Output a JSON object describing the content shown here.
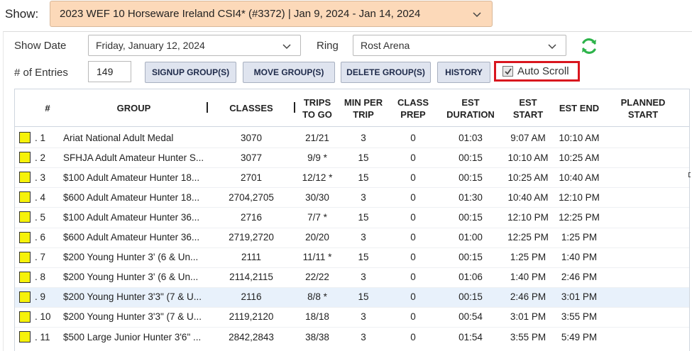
{
  "show": {
    "label": "Show:",
    "selected": "2023 WEF 10 Horseware Ireland CSI4* (#3372) | Jan 9, 2024 - Jan 14, 2024",
    "bg_color": "#fcd9b9"
  },
  "filters": {
    "show_date_label": "Show Date",
    "show_date_value": "Friday, January 12, 2024",
    "ring_label": "Ring",
    "ring_value": "Rost Arena",
    "entries_label": "# of Entries",
    "entries_value": "149"
  },
  "toolbar": {
    "signup_label": "SIGNUP GROUP(S)",
    "move_label": "MOVE GROUP(S)",
    "delete_label": "DELETE GROUP(S)",
    "history_label": "HISTORY",
    "auto_scroll_label": "Auto Scroll",
    "auto_scroll_checked": true,
    "refresh_icon": "refresh-icon",
    "refresh_color": "#2db34a",
    "highlight_color": "#d9161e"
  },
  "table": {
    "headers": {
      "num": "#",
      "group": "GROUP",
      "classes": "CLASSES",
      "trips_1": "TRIPS",
      "trips_2": "TO GO",
      "min_1": "MIN PER",
      "min_2": "TRIP",
      "prep_1": "CLASS",
      "prep_2": "PREP",
      "dur_1": "EST",
      "dur_2": "DURATION",
      "start_1": "EST",
      "start_2": "START",
      "end": "EST END",
      "planned_1": "PLANNED",
      "planned_2": "START"
    },
    "rows": [
      {
        "num": ". 1",
        "group": "Ariat National Adult Medal",
        "classes": "3070",
        "trips": "21/21",
        "min": "3",
        "prep": "0",
        "dur": "01:03",
        "start": "9:07 AM",
        "end": "10:10 AM",
        "planned": ""
      },
      {
        "num": ". 2",
        "group": "SFHJA Adult Amateur Hunter S...",
        "classes": "3077",
        "trips": "9/9 *",
        "min": "15",
        "prep": "0",
        "dur": "00:15",
        "start": "10:10 AM",
        "end": "10:25 AM",
        "planned": ""
      },
      {
        "num": ". 3",
        "group": "$100 Adult Amateur Hunter 18...",
        "classes": "2701",
        "trips": "12/12 *",
        "min": "15",
        "prep": "0",
        "dur": "00:15",
        "start": "10:25 AM",
        "end": "10:40 AM",
        "planned": ""
      },
      {
        "num": ". 4",
        "group": "$600 Adult Amateur Hunter 18...",
        "classes": "2704,2705",
        "trips": "30/30",
        "min": "3",
        "prep": "0",
        "dur": "01:30",
        "start": "10:40 AM",
        "end": "12:10 PM",
        "planned": ""
      },
      {
        "num": ". 5",
        "group": "$100 Adult Amateur Hunter 36...",
        "classes": "2716",
        "trips": "7/7 *",
        "min": "15",
        "prep": "0",
        "dur": "00:15",
        "start": "12:10 PM",
        "end": "12:25 PM",
        "planned": ""
      },
      {
        "num": ". 6",
        "group": "$600 Adult Amateur Hunter 36...",
        "classes": "2719,2720",
        "trips": "20/20",
        "min": "3",
        "prep": "0",
        "dur": "01:00",
        "start": "12:25 PM",
        "end": "1:25 PM",
        "planned": ""
      },
      {
        "num": ". 7",
        "group": "$200 Young Hunter 3' (6 & Un...",
        "classes": "2111",
        "trips": "11/11 *",
        "min": "15",
        "prep": "0",
        "dur": "00:15",
        "start": "1:25 PM",
        "end": "1:40 PM",
        "planned": ""
      },
      {
        "num": ". 8",
        "group": "$200 Young Hunter 3' (6 & Un...",
        "classes": "2114,2115",
        "trips": "22/22",
        "min": "3",
        "prep": "0",
        "dur": "01:06",
        "start": "1:40 PM",
        "end": "2:46 PM",
        "planned": ""
      },
      {
        "num": ". 9",
        "group": "$200 Young Hunter 3'3\" (7 & U...",
        "classes": "2116",
        "trips": "8/8 *",
        "min": "15",
        "prep": "0",
        "dur": "00:15",
        "start": "2:46 PM",
        "end": "3:01 PM",
        "planned": ""
      },
      {
        "num": ". 10",
        "group": "$200 Young Hunter 3'3\" (7 & U...",
        "classes": "2119,2120",
        "trips": "18/18",
        "min": "3",
        "prep": "0",
        "dur": "00:54",
        "start": "3:01 PM",
        "end": "3:55 PM",
        "planned": ""
      },
      {
        "num": ". 11",
        "group": "$500 Large Junior Hunter 3'6\" ...",
        "classes": "2842,2843",
        "trips": "38/38",
        "min": "3",
        "prep": "0",
        "dur": "01:54",
        "start": "3:55 PM",
        "end": "5:49 PM",
        "planned": ""
      }
    ],
    "selected_row_index": 8,
    "status_square_color": "#f6f20a"
  }
}
